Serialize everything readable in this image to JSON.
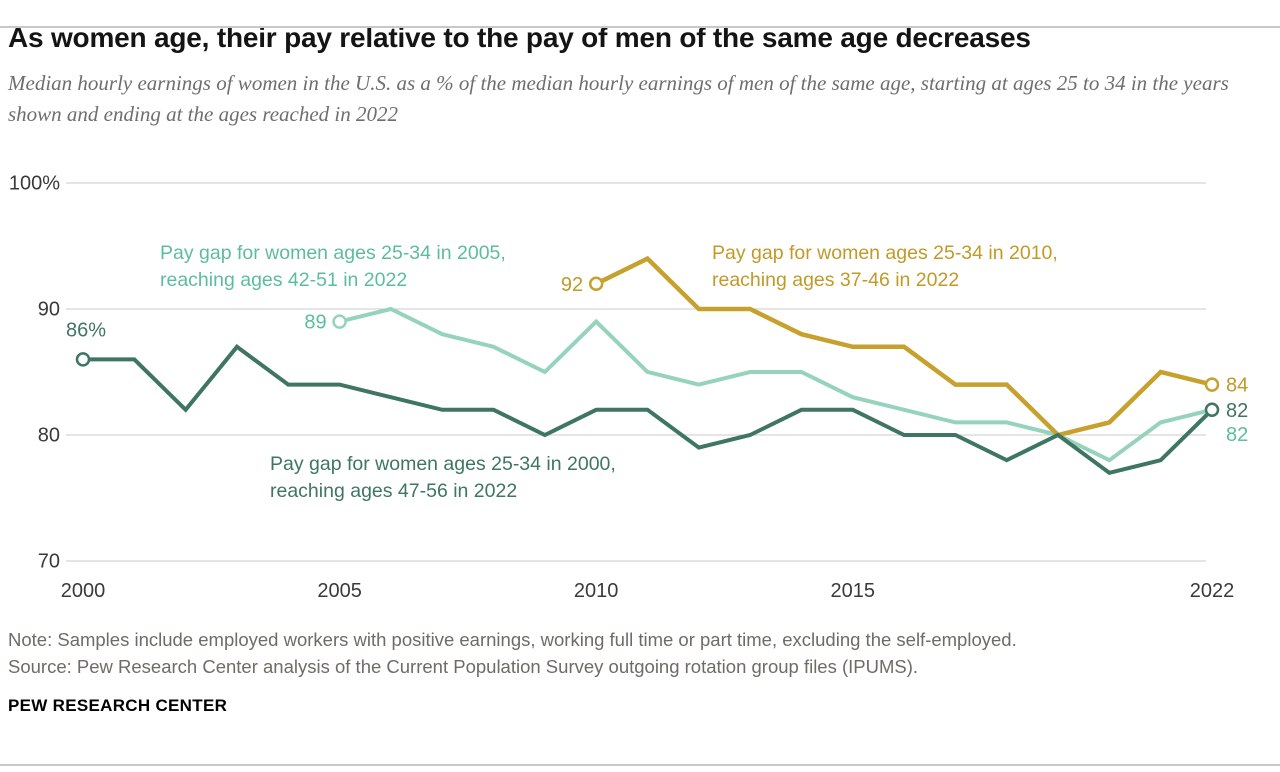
{
  "page": {
    "title": "As women age, their pay relative to the pay of men of the same age decreases",
    "subtitle": "Median hourly earnings of women in the U.S. as a % of the median hourly earnings of men of the same age, starting at ages 25 to 34 in the years shown and ending at the ages reached in 2022",
    "note": "Note: Samples include employed workers with positive earnings, working full time or part time, excluding the self-employed.",
    "source": "Source: Pew Research Center analysis of the Current Population Survey outgoing rotation group files (IPUMS).",
    "footer": "PEW RESEARCH CENTER"
  },
  "chart_data": {
    "type": "line",
    "title": "As women age, their pay relative to the pay of men of the same age decreases",
    "xlim": [
      2000,
      2022
    ],
    "ylim": [
      70,
      100
    ],
    "grid": true,
    "x_ticks": [
      2000,
      2005,
      2010,
      2015,
      2022
    ],
    "x_tick_labels": [
      "2000",
      "2005",
      "2010",
      "2015",
      "2022"
    ],
    "y_ticks": [
      100,
      90,
      80,
      70
    ],
    "y_tick_labels": [
      "100%",
      "90",
      "80",
      "70"
    ],
    "series": [
      {
        "id": "cohort_2000",
        "name": "Women ages 25-34 in 2000",
        "color": "#3e7563",
        "label_color": "#3e7563",
        "start_year": 2000,
        "start_label": "86%",
        "end_label": "82",
        "values": [
          86,
          86,
          82,
          87,
          84,
          84,
          83,
          82,
          82,
          80,
          82,
          82,
          79,
          80,
          82,
          82,
          80,
          80,
          78,
          80,
          77,
          78,
          82
        ],
        "annotation": {
          "line1": "Pay gap for women ages 25-34 in 2000,",
          "line2": "reaching ages 47-56 in 2022"
        }
      },
      {
        "id": "cohort_2005",
        "name": "Women ages 25-34 in 2005",
        "color": "#95d4bb",
        "label_color": "#5cbd9e",
        "start_year": 2005,
        "start_label": "89",
        "end_label": "82",
        "values": [
          89,
          90,
          88,
          87,
          85,
          89,
          85,
          84,
          85,
          85,
          83,
          82,
          81,
          81,
          80,
          78,
          81,
          82
        ],
        "annotation": {
          "line1": "Pay gap for women ages 25-34 in 2005,",
          "line2": "reaching ages 42-51 in 2022"
        }
      },
      {
        "id": "cohort_2010",
        "name": "Women ages 25-34 in 2010",
        "color": "#c7a12d",
        "label_color": "#c19a27",
        "start_year": 2010,
        "start_label": "92",
        "end_label": "84",
        "values": [
          92,
          94,
          90,
          90,
          88,
          87,
          87,
          84,
          84,
          80,
          81,
          85,
          84
        ],
        "annotation": {
          "line1": "Pay gap for women ages 25-34 in 2010,",
          "line2": "reaching ages 37-46 in 2022"
        }
      }
    ]
  }
}
